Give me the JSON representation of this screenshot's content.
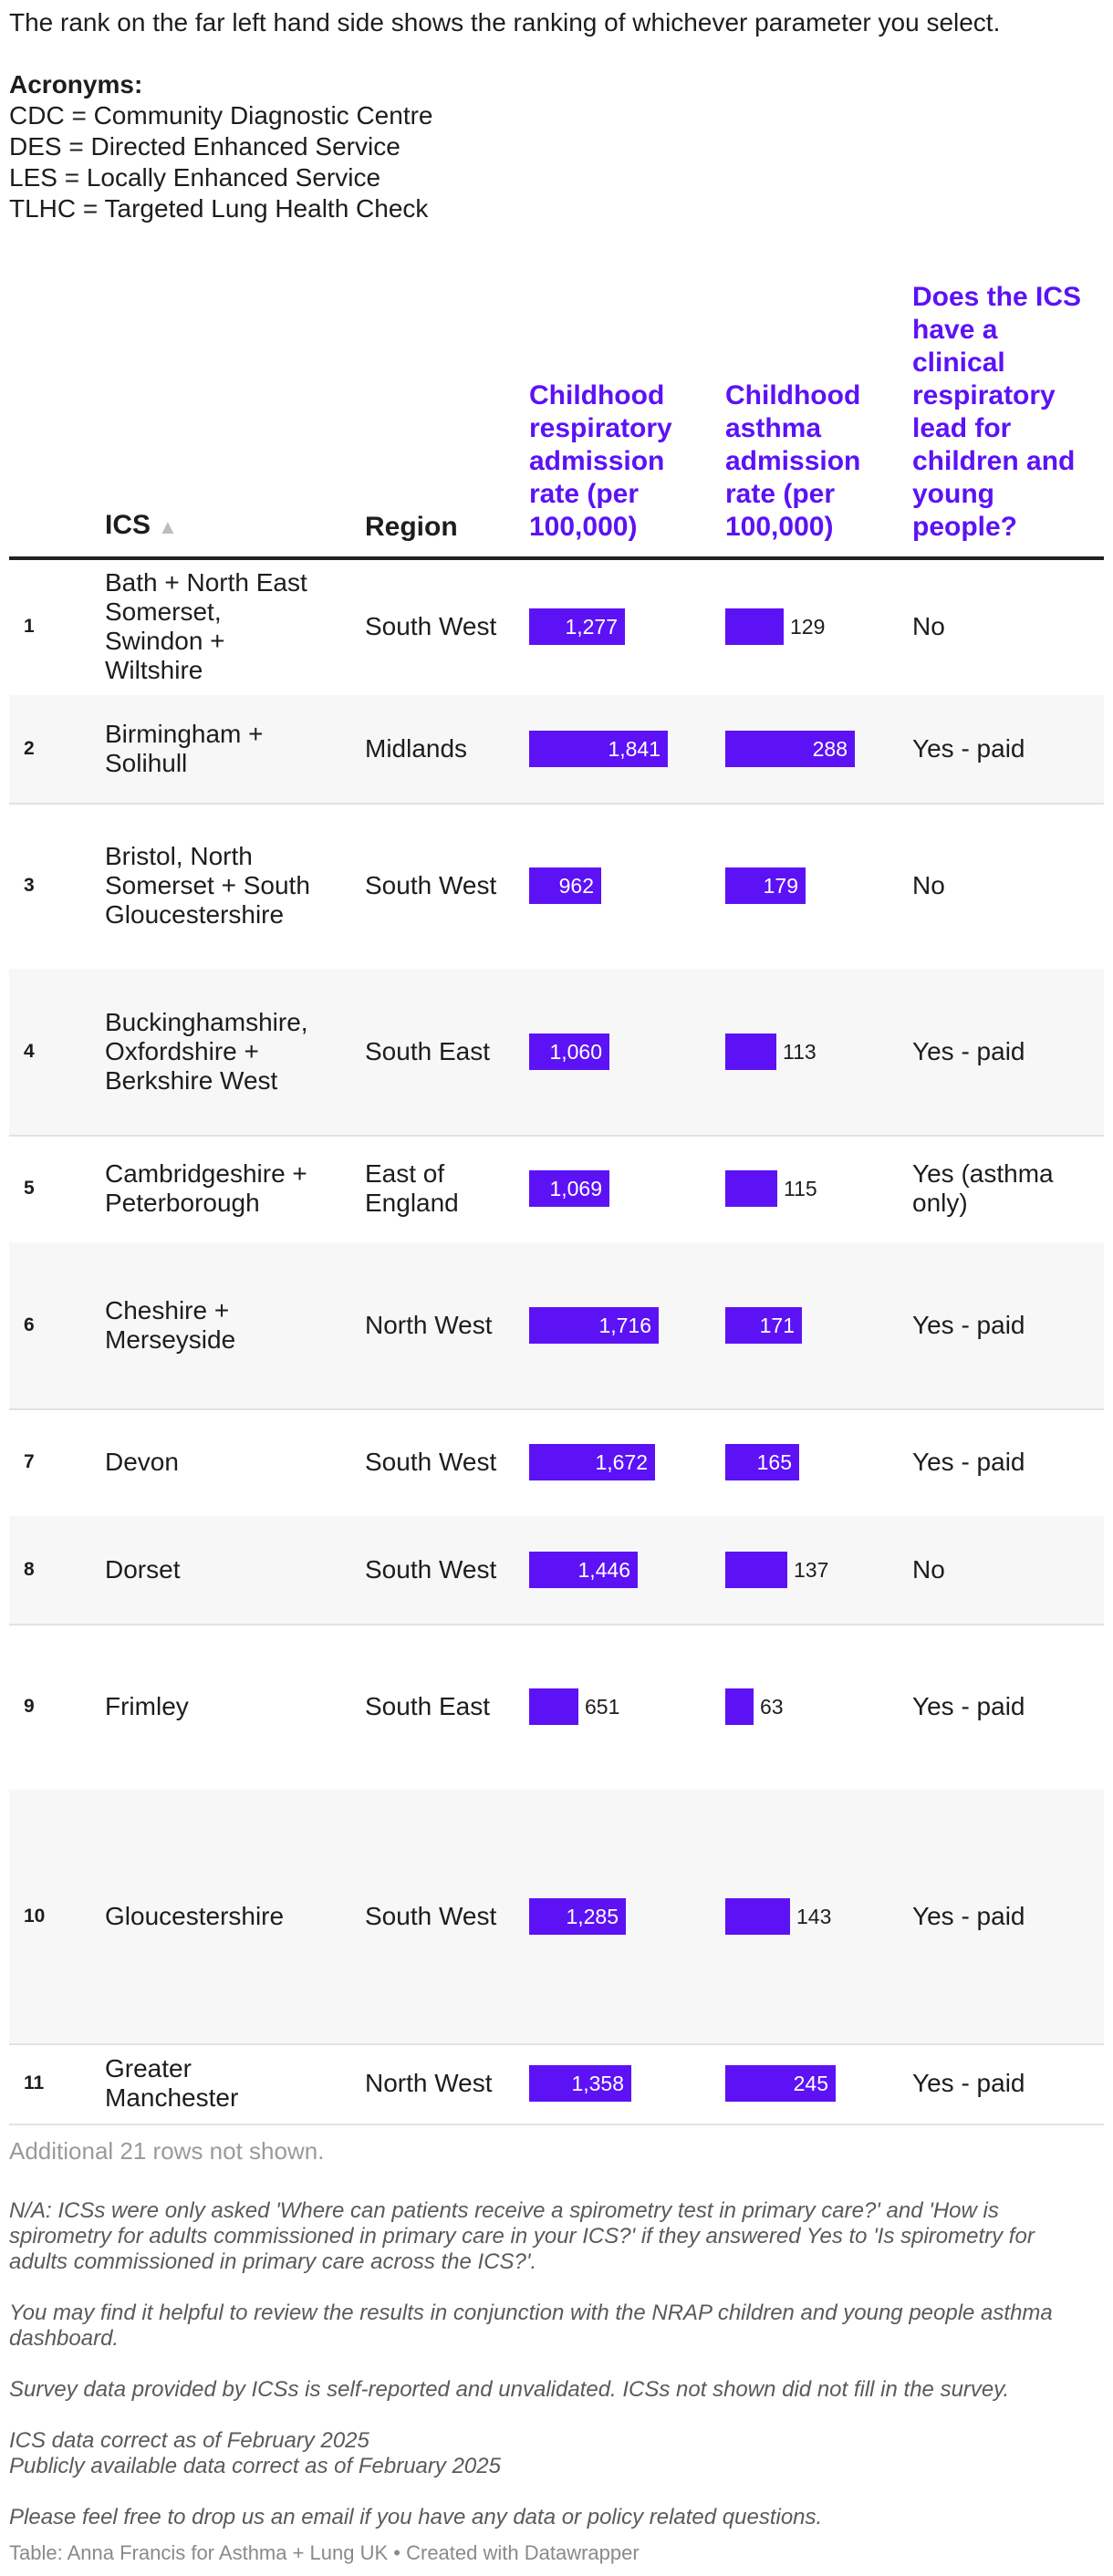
{
  "intro": {
    "text": "The rank on the far left hand side shows the ranking of whichever parameter you select.",
    "acronyms_heading": "Acronyms:",
    "acronyms": [
      "CDC = Community Diagnostic Centre",
      "DES = Directed Enhanced Service",
      "LES = Locally Enhanced Service",
      "TLHC = Targeted Lung Health Check"
    ]
  },
  "table": {
    "columns": [
      "ICS",
      "Region",
      "Childhood respiratory admission rate (per 100,000)",
      "Childhood asthma admission rate (per 100,000)",
      "Does the ICS have a clinical respiratory lead for children and young people?"
    ],
    "bar_color": "#5c12f5",
    "rows": [
      {
        "rank": "1",
        "ics": "Bath + North East Somerset, Swindon + Wiltshire",
        "region": "South West",
        "resp": 1277,
        "resp_label": "1,277",
        "asthma": 129,
        "asthma_label": "129",
        "lead": "No"
      },
      {
        "rank": "2",
        "ics": "Birmingham + Solihull",
        "region": "Midlands",
        "resp": 1841,
        "resp_label": "1,841",
        "asthma": 288,
        "asthma_label": "288",
        "lead": "Yes - paid"
      },
      {
        "rank": "3",
        "ics": "Bristol, North Somerset + South Gloucestershire",
        "region": "South West",
        "resp": 962,
        "resp_label": "962",
        "asthma": 179,
        "asthma_label": "179",
        "lead": "No"
      },
      {
        "rank": "4",
        "ics": "Buckinghamshire, Oxfordshire + Berkshire West",
        "region": "South East",
        "resp": 1060,
        "resp_label": "1,060",
        "asthma": 113,
        "asthma_label": "113",
        "lead": "Yes - paid"
      },
      {
        "rank": "5",
        "ics": "Cambridgeshire + Peterborough",
        "region": "East of England",
        "resp": 1069,
        "resp_label": "1,069",
        "asthma": 115,
        "asthma_label": "115",
        "lead": "Yes (asthma only)"
      },
      {
        "rank": "6",
        "ics": "Cheshire + Merseyside",
        "region": "North West",
        "resp": 1716,
        "resp_label": "1,716",
        "asthma": 171,
        "asthma_label": "171",
        "lead": "Yes - paid"
      },
      {
        "rank": "7",
        "ics": "Devon",
        "region": "South West",
        "resp": 1672,
        "resp_label": "1,672",
        "asthma": 165,
        "asthma_label": "165",
        "lead": "Yes - paid"
      },
      {
        "rank": "8",
        "ics": "Dorset",
        "region": "South West",
        "resp": 1446,
        "resp_label": "1,446",
        "asthma": 137,
        "asthma_label": "137",
        "lead": "No"
      },
      {
        "rank": "9",
        "ics": "Frimley",
        "region": "South East",
        "resp": 651,
        "resp_label": "651",
        "asthma": 63,
        "asthma_label": "63",
        "lead": "Yes - paid"
      },
      {
        "rank": "10",
        "ics": "Gloucestershire",
        "region": "South West",
        "resp": 1285,
        "resp_label": "1,285",
        "asthma": 143,
        "asthma_label": "143",
        "lead": "Yes - paid"
      },
      {
        "rank": "11",
        "ics": "Greater Manchester",
        "region": "North West",
        "resp": 1358,
        "resp_label": "1,358",
        "asthma": 245,
        "asthma_label": "245",
        "lead": "Yes - paid"
      }
    ],
    "more_rows": "Additional 21 rows not shown."
  },
  "footnotes": [
    "N/A: ICSs were only asked 'Where can patients receive a spirometry test in primary care?' and 'How is spirometry for adults commissioned in primary care in your ICS?' if they answered Yes to 'Is spirometry for adults commissioned in primary care across the ICS?'.",
    "You may find it helpful to review the results in conjunction with the NRAP children and young people asthma dashboard.",
    "Survey data provided by ICSs is self-reported and unvalidated. ICSs not shown did not fill in the survey.",
    "ICS data correct as of February 2025",
    "Publicly available data correct as of February 2025",
    "Please feel free to drop us an email if you have any data or policy related questions."
  ],
  "credit": "Table: Anna Francis for Asthma + Lung UK • Created with Datawrapper"
}
